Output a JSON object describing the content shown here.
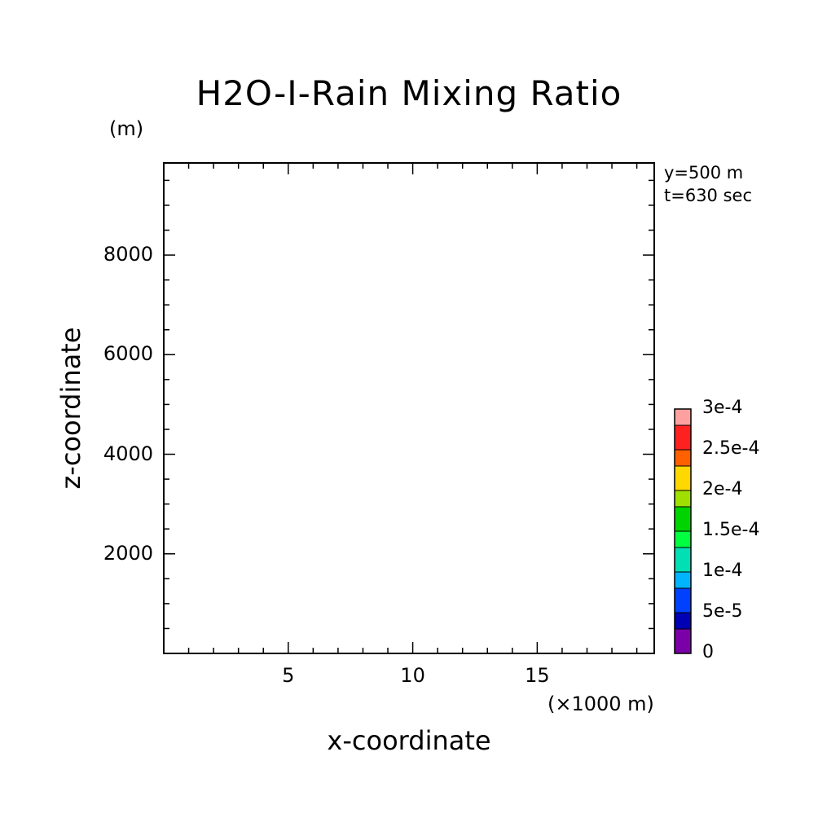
{
  "chart_data": {
    "type": "heatmap",
    "title": "H2O-I-Rain Mixing Ratio",
    "xlabel": "x-coordinate",
    "ylabel": "z-coordinate",
    "x_unit": "(×1000 m)",
    "y_unit": "(m)",
    "xlim": [
      0,
      19.7
    ],
    "ylim": [
      0,
      9850
    ],
    "x_ticks": [
      5,
      10,
      15
    ],
    "x_tick_labels": [
      "5",
      "10",
      "15"
    ],
    "y_ticks": [
      2000,
      4000,
      6000,
      8000
    ],
    "y_tick_labels": [
      "2000",
      "4000",
      "6000",
      "8000"
    ],
    "x_minor_step": 1,
    "y_minor_step": 500,
    "info": [
      "y=500 m",
      "t=630 sec"
    ],
    "field_values": [],
    "colorbar": {
      "levels": [
        0,
        3e-05,
        5e-05,
        8e-05,
        0.0001,
        0.00013,
        0.00015,
        0.00018,
        0.0002,
        0.00023,
        0.00025,
        0.00028,
        0.0003
      ],
      "colors": [
        "#7b00a8",
        "#0000b4",
        "#0040ff",
        "#00b4ff",
        "#00e0b4",
        "#00ff40",
        "#00d400",
        "#a0e000",
        "#ffd800",
        "#ff6000",
        "#ff2020",
        "#ffa0a0"
      ],
      "labels": [
        {
          "value": 0,
          "text": "0"
        },
        {
          "value": 5e-05,
          "text": "5e-5"
        },
        {
          "value": 0.0001,
          "text": "1e-4"
        },
        {
          "value": 0.00015,
          "text": "1.5e-4"
        },
        {
          "value": 0.0002,
          "text": "2e-4"
        },
        {
          "value": 0.00025,
          "text": "2.5e-4"
        },
        {
          "value": 0.0003,
          "text": "3e-4"
        }
      ]
    }
  }
}
